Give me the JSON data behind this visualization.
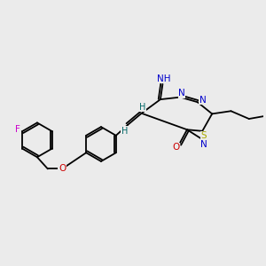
{
  "bg_color": "#ebebeb",
  "atom_colors": {
    "C": "#000000",
    "N": "#0000cc",
    "O": "#cc0000",
    "S": "#aaaa00",
    "F": "#cc00cc",
    "H": "#006666"
  },
  "bond_color": "#000000",
  "lw": 1.3,
  "fs": 7.5
}
